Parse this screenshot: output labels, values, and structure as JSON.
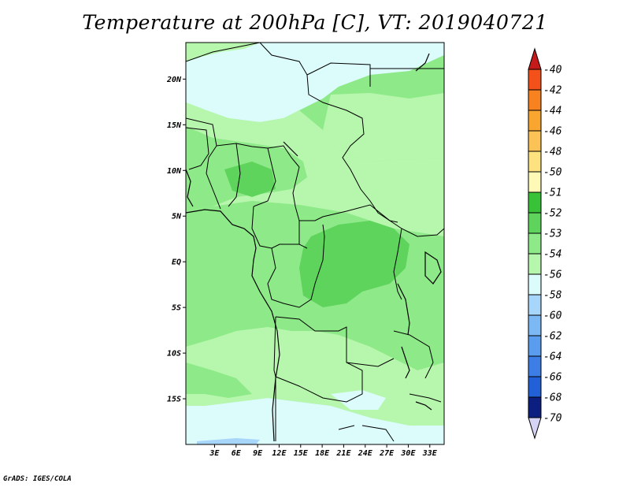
{
  "title": "Temperature at 200hPa [C], VT: 2019040721",
  "credit": "GrADS: IGES/COLA",
  "map": {
    "lon_range": [
      -1,
      35
    ],
    "lat_range": [
      -20,
      24
    ],
    "lon_ticks": [
      {
        "value": 3,
        "label": "3E"
      },
      {
        "value": 6,
        "label": "6E"
      },
      {
        "value": 9,
        "label": "9E"
      },
      {
        "value": 12,
        "label": "12E"
      },
      {
        "value": 15,
        "label": "15E"
      },
      {
        "value": 18,
        "label": "18E"
      },
      {
        "value": 21,
        "label": "21E"
      },
      {
        "value": 24,
        "label": "24E"
      },
      {
        "value": 27,
        "label": "27E"
      },
      {
        "value": 30,
        "label": "30E"
      },
      {
        "value": 33,
        "label": "33E"
      }
    ],
    "lat_ticks": [
      {
        "value": 20,
        "label": "20N"
      },
      {
        "value": 15,
        "label": "15N"
      },
      {
        "value": 10,
        "label": "10N"
      },
      {
        "value": 5,
        "label": "5N"
      },
      {
        "value": 0,
        "label": "EQ"
      },
      {
        "value": -5,
        "label": "5S"
      },
      {
        "value": -10,
        "label": "10S"
      },
      {
        "value": -15,
        "label": "15S"
      }
    ]
  },
  "colorbar": {
    "levels": [
      {
        "label": "-40",
        "color": "#e02a12"
      },
      {
        "label": "-42",
        "color": "#f4501a"
      },
      {
        "label": "-44",
        "color": "#f7821f"
      },
      {
        "label": "-46",
        "color": "#f9a630"
      },
      {
        "label": "-48",
        "color": "#fbc355"
      },
      {
        "label": "-50",
        "color": "#fde27f"
      },
      {
        "label": "-51",
        "color": "#fff9b8"
      },
      {
        "label": "-52",
        "color": "#38c238"
      },
      {
        "label": "-53",
        "color": "#5ed45c"
      },
      {
        "label": "-54",
        "color": "#8ee988"
      },
      {
        "label": "-56",
        "color": "#b7f7ad"
      },
      {
        "label": "-58",
        "color": "#dbfcfb"
      },
      {
        "label": "-60",
        "color": "#a7d6fa"
      },
      {
        "label": "-62",
        "color": "#7cb8f4"
      },
      {
        "label": "-64",
        "color": "#5a9ced"
      },
      {
        "label": "-66",
        "color": "#3d7ee6"
      },
      {
        "label": "-68",
        "color": "#2160d6"
      },
      {
        "label": "-70",
        "color": "#1744b3"
      }
    ],
    "top_triangle_color": "#c41a1a",
    "bottom_triangle_color": "#d6d4f5",
    "bottom_label_color": "#0c1e80"
  },
  "field_colors": {
    "lightest": "#dbfcfb",
    "light": "#b7f7ad",
    "mid": "#8ee988",
    "dark": "#5ed45c",
    "blue": "#a7d6fa"
  }
}
